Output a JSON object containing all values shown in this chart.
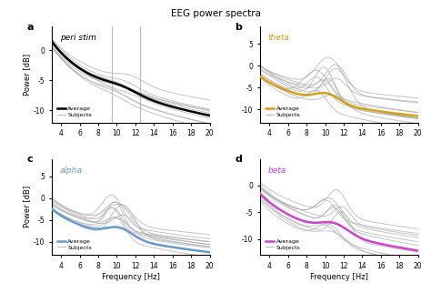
{
  "title": "EEG power spectra",
  "panels": [
    "a",
    "b",
    "c",
    "d"
  ],
  "panel_labels": [
    "peri stim",
    "theta",
    "alpha",
    "beta"
  ],
  "panel_label_colors": [
    "black",
    "#d4a017",
    "#6699cc",
    "#cc44cc"
  ],
  "avg_colors": [
    "black",
    "#d4a017",
    "#6699cc",
    "#cc44cc"
  ],
  "freq_range": [
    3,
    20
  ],
  "xlabel": "Frequency [Hz]",
  "ylabel": "Power [dB]",
  "xticks": [
    4,
    6,
    8,
    10,
    12,
    14,
    16,
    18,
    20
  ],
  "background": "#ffffff",
  "subject_color": "#aaaaaa",
  "subject_lw": 0.6,
  "avg_lw": 1.8
}
